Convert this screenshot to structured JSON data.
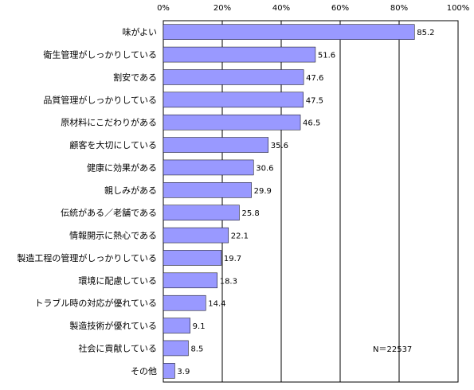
{
  "chart_data": {
    "type": "bar",
    "orientation": "horizontal",
    "categories": [
      "味がよい",
      "衛生管理がしっかりしている",
      "割安である",
      "品質管理がしっかりしている",
      "原材料にこだわりがある",
      "顧客を大切にしている",
      "健康に効果がある",
      "親しみがある",
      "伝統がある／老舗である",
      "情報開示に熱心である",
      "製造工程の管理がしっかりしている",
      "環境に配慮している",
      "トラブル時の対応が優れている",
      "製造技術が優れている",
      "社会に貢献している",
      "その他"
    ],
    "values": [
      85.2,
      51.6,
      47.6,
      47.5,
      46.5,
      35.6,
      30.6,
      29.9,
      25.8,
      22.1,
      19.7,
      18.3,
      14.4,
      9.1,
      8.5,
      3.9
    ],
    "value_labels": [
      "85.2",
      "51.6",
      "47.6",
      "47.5",
      "46.5",
      "35.6",
      "30.6",
      "29.9",
      "25.8",
      "22.1",
      "19.7",
      "18.3",
      "14.4",
      "9.1",
      "8.5",
      "3.9"
    ],
    "xlim": [
      0,
      100
    ],
    "xticks": [
      0,
      20,
      40,
      60,
      80,
      100
    ],
    "xtick_labels": [
      "0%",
      "20%",
      "40%",
      "60%",
      "80%",
      "100%"
    ],
    "xaxis_position": "top",
    "grid": "vertical",
    "legend": "none",
    "annotation": "N＝22537",
    "bar_color": "#9999ff",
    "bar_edge_color": "#000000"
  }
}
